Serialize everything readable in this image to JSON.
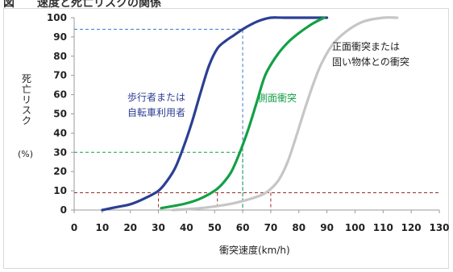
{
  "header": {
    "title": "図　　速度と死亡リスクの関係"
  },
  "colors": {
    "pedestrian": "#2b3f93",
    "side": "#13a045",
    "frontal": "#c6c6c6",
    "guide_blue": "#3a78c8",
    "guide_green": "#13a045",
    "guide_red": "#9b2a2a",
    "axis": "#9a9a9a",
    "text": "#222222"
  },
  "annotations": {
    "pedestrian": [
      "歩行者または",
      "自転車利用者"
    ],
    "side": [
      "側面衝突"
    ],
    "frontal": [
      "正面衝突または",
      "固い物体との衝突"
    ]
  },
  "chart_data": {
    "type": "line",
    "title": "",
    "xlabel": "衝突速度(km/h)",
    "ylabel": "死亡リスク",
    "yunit": "(%)",
    "xlim": [
      0,
      130
    ],
    "ylim": [
      0,
      100
    ],
    "xticks": [
      0,
      10,
      20,
      30,
      40,
      50,
      60,
      70,
      80,
      90,
      100,
      110,
      120,
      130
    ],
    "yticks": [
      0,
      10,
      20,
      30,
      40,
      50,
      60,
      70,
      80,
      90,
      100
    ],
    "grid": false,
    "series": [
      {
        "name": "歩行者または自転車利用者",
        "color": "#2b3f93",
        "x": [
          10,
          15,
          20,
          25,
          30,
          33,
          36,
          39,
          42,
          45,
          48,
          51,
          54,
          57,
          60,
          63,
          66,
          70,
          75,
          90
        ],
        "y": [
          0,
          1.5,
          3,
          6,
          10,
          15,
          22,
          33,
          46,
          61,
          75,
          84,
          88,
          91,
          94,
          96.5,
          98.5,
          100,
          100,
          100
        ]
      },
      {
        "name": "側面衝突",
        "color": "#13a045",
        "x": [
          31,
          35,
          40,
          45,
          50,
          53,
          56,
          59,
          62,
          65,
          68,
          72,
          76,
          80,
          85,
          89
        ],
        "y": [
          1,
          2,
          3.5,
          6,
          10,
          14,
          20,
          30,
          42,
          56,
          70,
          80,
          87,
          92,
          97,
          100
        ]
      },
      {
        "name": "正面衝突または固い物体との衝突",
        "color": "#c6c6c6",
        "x": [
          35,
          45,
          55,
          62,
          67,
          70,
          73,
          76,
          79,
          82,
          85,
          88,
          92,
          97,
          103,
          110,
          115
        ],
        "y": [
          0,
          1,
          3,
          5.5,
          8,
          11,
          16,
          25,
          38,
          52,
          65,
          76,
          86,
          93,
          98,
          100,
          100
        ]
      }
    ],
    "reference_lines": [
      {
        "color": "#3a78c8",
        "x": 60,
        "y": 94
      },
      {
        "color": "#13a045",
        "x": 60,
        "y": 30
      },
      {
        "color": "#9b2a2a",
        "x": null,
        "y": 9,
        "drops": [
          30,
          51,
          70
        ]
      }
    ]
  }
}
